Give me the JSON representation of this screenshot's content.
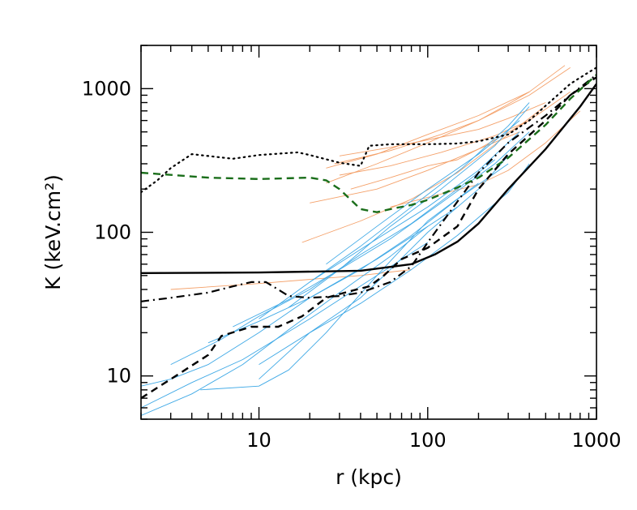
{
  "chart_data": {
    "type": "line",
    "xlabel": "r (kpc)",
    "ylabel": "K (keV.cm²)",
    "xscale": "log",
    "yscale": "log",
    "xlim": [
      2,
      1000
    ],
    "ylim": [
      5,
      2000
    ],
    "grid": false,
    "legend": "none",
    "xticks": [
      {
        "v": 10,
        "label": "10"
      },
      {
        "v": 100,
        "label": "100"
      },
      {
        "v": 1000,
        "label": "1000"
      }
    ],
    "yticks": [
      {
        "v": 10,
        "label": "10"
      },
      {
        "v": 100,
        "label": "100"
      },
      {
        "v": 1000,
        "label": "1000"
      }
    ],
    "colors": {
      "axis": "#000000",
      "orange": "#f4a16a",
      "blue": "#3fa9e6",
      "green": "#1a6e1a",
      "black": "#000000"
    },
    "series": [
      {
        "style": "solid",
        "color": "black",
        "width": 2.4,
        "x": [
          2,
          10,
          40,
          80,
          110,
          150,
          200,
          300,
          500,
          800,
          1000
        ],
        "y": [
          52,
          52.5,
          54,
          60,
          70,
          86,
          115,
          200,
          380,
          750,
          1080
        ]
      },
      {
        "style": "dotted",
        "color": "black",
        "width": 2.2,
        "x": [
          2,
          2.5,
          3,
          4,
          7,
          10,
          17,
          20,
          30,
          40,
          45,
          60,
          100,
          150,
          200,
          300,
          400,
          500,
          700,
          900,
          1000
        ],
        "y": [
          190,
          230,
          280,
          350,
          325,
          345,
          360,
          345,
          305,
          290,
          400,
          410,
          410,
          415,
          430,
          480,
          600,
          760,
          1080,
          1300,
          1400
        ]
      },
      {
        "style": "dashed",
        "color": "black",
        "width": 2.4,
        "x": [
          2,
          3,
          5,
          6,
          9,
          13,
          18,
          25,
          35,
          45,
          55,
          70,
          100,
          150,
          200,
          300,
          500,
          700,
          1000
        ],
        "y": [
          7,
          9.5,
          14,
          19,
          22,
          22,
          26,
          35,
          39,
          42,
          50,
          65,
          78,
          110,
          200,
          350,
          600,
          900,
          1200
        ]
      },
      {
        "style": "dashdot",
        "color": "black",
        "width": 2.2,
        "x": [
          2,
          3,
          5,
          7,
          9,
          11,
          15,
          20,
          30,
          40,
          60,
          80,
          100,
          130,
          200,
          300,
          500,
          700,
          1000
        ],
        "y": [
          33,
          35,
          38,
          42,
          45,
          45,
          36,
          35,
          36,
          38,
          45,
          58,
          85,
          130,
          260,
          420,
          650,
          900,
          1250
        ]
      },
      {
        "style": "dashed",
        "color": "green",
        "width": 2.4,
        "x": [
          2,
          5,
          10,
          20,
          25,
          30,
          40,
          50,
          60,
          80,
          100,
          150,
          200,
          300,
          500,
          700,
          1000
        ],
        "y": [
          260,
          240,
          235,
          240,
          230,
          200,
          145,
          138,
          145,
          155,
          168,
          205,
          240,
          330,
          560,
          850,
          1250
        ]
      },
      {
        "style": "thin",
        "color": "orange",
        "x": [
          3,
          10,
          20,
          40,
          80
        ],
        "y": [
          40,
          44,
          47,
          50,
          55
        ]
      },
      {
        "style": "thin",
        "color": "orange",
        "x": [
          18,
          40,
          80,
          150,
          300,
          500
        ],
        "y": [
          85,
          120,
          170,
          260,
          480,
          760
        ]
      },
      {
        "style": "thin",
        "color": "orange",
        "x": [
          20,
          50,
          100,
          200,
          400,
          700
        ],
        "y": [
          160,
          200,
          270,
          380,
          600,
          950
        ]
      },
      {
        "style": "thin",
        "color": "orange",
        "x": [
          25,
          50,
          100,
          200,
          400,
          700
        ],
        "y": [
          220,
          300,
          420,
          600,
          900,
          1400
        ]
      },
      {
        "style": "thin",
        "color": "orange",
        "x": [
          25,
          50,
          100,
          200,
          400,
          650
        ],
        "y": [
          280,
          350,
          480,
          650,
          950,
          1450
        ]
      },
      {
        "style": "thin",
        "color": "orange",
        "x": [
          28,
          60,
          120,
          200,
          300,
          400
        ],
        "y": [
          300,
          370,
          480,
          600,
          780,
          950
        ]
      },
      {
        "style": "thin",
        "color": "orange",
        "x": [
          30,
          60,
          120,
          250,
          400
        ],
        "y": [
          250,
          290,
          360,
          470,
          600
        ]
      },
      {
        "style": "thin",
        "color": "orange",
        "x": [
          30,
          60,
          100,
          200,
          300,
          500
        ],
        "y": [
          340,
          390,
          440,
          520,
          620,
          800
        ]
      },
      {
        "style": "thin",
        "color": "orange",
        "x": [
          35,
          60,
          100,
          150,
          200,
          350
        ],
        "y": [
          200,
          240,
          290,
          320,
          380,
          500
        ]
      },
      {
        "style": "thin",
        "color": "orange",
        "x": [
          60,
          100,
          200,
          300,
          500,
          800
        ],
        "y": [
          150,
          175,
          215,
          270,
          420,
          700
        ]
      },
      {
        "style": "thin",
        "color": "blue",
        "x": [
          2,
          4,
          8,
          15,
          30,
          60,
          100
        ],
        "y": [
          5.3,
          7.5,
          12,
          21,
          38,
          68,
          110
        ]
      },
      {
        "style": "thin",
        "color": "blue",
        "x": [
          2,
          4,
          8,
          20,
          50,
          100
        ],
        "y": [
          6,
          9,
          13,
          25,
          50,
          85
        ]
      },
      {
        "style": "thin",
        "color": "blue",
        "x": [
          2,
          3,
          5,
          10,
          20,
          50,
          100,
          150
        ],
        "y": [
          8.5,
          9.5,
          12,
          20,
          35,
          65,
          110,
          150
        ]
      },
      {
        "style": "thin",
        "color": "blue",
        "x": [
          4.5,
          10,
          15,
          25,
          50,
          100,
          200
        ],
        "y": [
          8,
          8.5,
          11,
          20,
          50,
          120,
          220
        ]
      },
      {
        "style": "thin",
        "color": "blue",
        "x": [
          10,
          20,
          40,
          60,
          100,
          200,
          300
        ],
        "y": [
          9.5,
          20,
          35,
          55,
          100,
          200,
          340
        ]
      },
      {
        "style": "thin",
        "color": "blue",
        "x": [
          3,
          6,
          10,
          20,
          40,
          80,
          150,
          250
        ],
        "y": [
          12,
          18,
          26,
          40,
          70,
          115,
          200,
          320
        ]
      },
      {
        "style": "thin",
        "color": "blue",
        "x": [
          5,
          10,
          20,
          40,
          80,
          150,
          300
        ],
        "y": [
          17,
          24,
          35,
          55,
          95,
          170,
          300
        ]
      },
      {
        "style": "thin",
        "color": "blue",
        "x": [
          7,
          15,
          30,
          60,
          120,
          250,
          400
        ],
        "y": [
          22,
          34,
          55,
          90,
          160,
          300,
          500
        ]
      },
      {
        "style": "thin",
        "color": "blue",
        "x": [
          10,
          20,
          40,
          80,
          150,
          300,
          400
        ],
        "y": [
          12,
          20,
          32,
          55,
          95,
          190,
          300
        ]
      },
      {
        "style": "thin",
        "color": "blue",
        "x": [
          10,
          20,
          50,
          100,
          200,
          350
        ],
        "y": [
          25,
          45,
          90,
          150,
          270,
          500
        ]
      },
      {
        "style": "thin",
        "color": "blue",
        "x": [
          15,
          30,
          60,
          120,
          250,
          400
        ],
        "y": [
          30,
          55,
          110,
          200,
          400,
          750
        ]
      },
      {
        "style": "thin",
        "color": "blue",
        "x": [
          20,
          40,
          80,
          160,
          300,
          400
        ],
        "y": [
          45,
          80,
          150,
          280,
          550,
          800
        ]
      },
      {
        "style": "thin",
        "color": "blue",
        "x": [
          25,
          50,
          100,
          200,
          350
        ],
        "y": [
          60,
          110,
          200,
          350,
          600
        ]
      }
    ]
  }
}
